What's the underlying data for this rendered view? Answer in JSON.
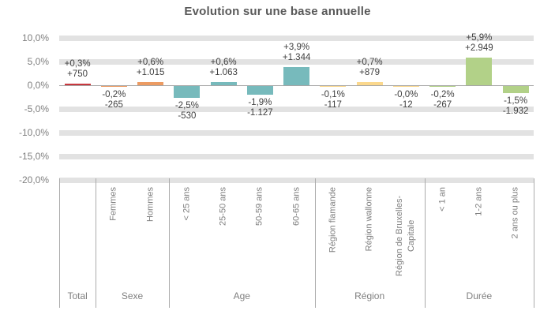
{
  "chart_data": {
    "type": "bar",
    "title": "Evolution sur une base annuelle",
    "unit": "%",
    "grid": "horizontal-bands",
    "gridband_color": "#E2E2E2",
    "legend": "none",
    "y_axis": {
      "min": -20,
      "max": 10,
      "step": 5,
      "tick_values": [
        10,
        5,
        0,
        -5,
        -10,
        -15,
        -20
      ],
      "tick_labels": [
        "10,0%",
        "5,0%",
        "0,0%",
        "-5,0%",
        "-10,0%",
        "-15,0%",
        "-20,0%"
      ]
    },
    "groups": [
      {
        "label": "Total",
        "color": "#C8383E",
        "bars": [
          {
            "category": "",
            "pct": 0.3,
            "value": 750,
            "pct_label": "+0,3%",
            "value_label": "+750"
          }
        ]
      },
      {
        "label": "Sexe",
        "color": "#EC9B62",
        "bars": [
          {
            "category": "Femmes",
            "pct": -0.2,
            "value": -265,
            "pct_label": "-0,2%",
            "value_label": "-265"
          },
          {
            "category": "Hommes",
            "pct": 0.6,
            "value": 1015,
            "pct_label": "+0,6%",
            "value_label": "+1.015"
          }
        ]
      },
      {
        "label": "Age",
        "color": "#77BABC",
        "bars": [
          {
            "category": "< 25 ans",
            "pct": -2.5,
            "value": -530,
            "pct_label": "-2,5%",
            "value_label": "-530"
          },
          {
            "category": "25-50 ans",
            "pct": 0.6,
            "value": 1063,
            "pct_label": "+0,6%",
            "value_label": "+1.063"
          },
          {
            "category": "50-59 ans",
            "pct": -1.9,
            "value": -1127,
            "pct_label": "-1,9%",
            "value_label": "-1.127"
          },
          {
            "category": "60-65 ans",
            "pct": 3.9,
            "value": 1344,
            "pct_label": "+3,9%",
            "value_label": "+1.344"
          }
        ]
      },
      {
        "label": "Région",
        "color": "#FBD88D",
        "bars": [
          {
            "category": "Région flamande",
            "pct": -0.1,
            "value": -117,
            "pct_label": "-0,1%",
            "value_label": "-117"
          },
          {
            "category": "Région wallonne",
            "pct": 0.7,
            "value": 879,
            "pct_label": "+0,7%",
            "value_label": "+879"
          },
          {
            "category": "Région de Bruxelles-Capitale",
            "pct": -0.03,
            "value": -12,
            "pct_label": "-0,0%",
            "value_label": "-12"
          }
        ]
      },
      {
        "label": "Durée",
        "color": "#B2D188",
        "bars": [
          {
            "category": "< 1 an",
            "pct": -0.2,
            "value": -267,
            "pct_label": "-0,2%",
            "value_label": "-267"
          },
          {
            "category": "1-2 ans",
            "pct": 5.9,
            "value": 2949,
            "pct_label": "+5,9%",
            "value_label": "+2.949"
          },
          {
            "category": "2 ans ou plus",
            "pct": -1.5,
            "value": -1932,
            "pct_label": "-1,5%",
            "value_label": "-1.932"
          }
        ]
      }
    ]
  }
}
